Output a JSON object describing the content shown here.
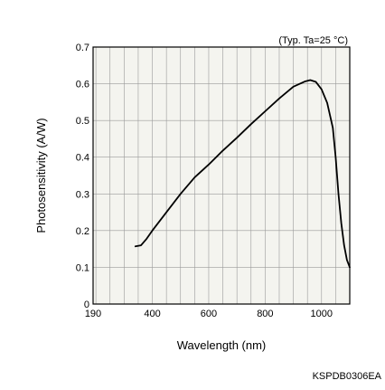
{
  "chart_data": {
    "type": "line",
    "annotation": "(Typ. Ta=25 °C)",
    "xlabel": "Wavelength (nm)",
    "ylabel": "Photosensitivity (A/W)",
    "footer": "KSPDB0306EA",
    "xlim": [
      190,
      1100
    ],
    "ylim": [
      0,
      0.7
    ],
    "x_ticks": [
      190,
      400,
      600,
      800,
      1000
    ],
    "y_ticks": [
      0,
      0.1,
      0.2,
      0.3,
      0.4,
      0.5,
      0.6,
      0.7
    ],
    "x_tick_labels": [
      "190",
      "400",
      "600",
      "800",
      "1000"
    ],
    "y_tick_labels": [
      "0",
      "0.1",
      "0.2",
      "0.3",
      "0.4",
      "0.5",
      "0.6",
      "0.7"
    ],
    "grid": true,
    "colors": {
      "plot_bg": "#f4f4ef",
      "line": "#000000",
      "grid": "#9a9a9a"
    },
    "series": [
      {
        "x": [
          340,
          360,
          380,
          400,
          450,
          500,
          550,
          600,
          650,
          700,
          750,
          800,
          850,
          900,
          940,
          960,
          980,
          1000,
          1020,
          1040,
          1050,
          1060,
          1070,
          1080,
          1090,
          1100
        ],
        "y": [
          0.157,
          0.16,
          0.178,
          0.2,
          0.25,
          0.3,
          0.345,
          0.38,
          0.418,
          0.453,
          0.49,
          0.525,
          0.56,
          0.592,
          0.606,
          0.61,
          0.605,
          0.585,
          0.548,
          0.48,
          0.4,
          0.3,
          0.22,
          0.16,
          0.12,
          0.1
        ]
      }
    ]
  }
}
